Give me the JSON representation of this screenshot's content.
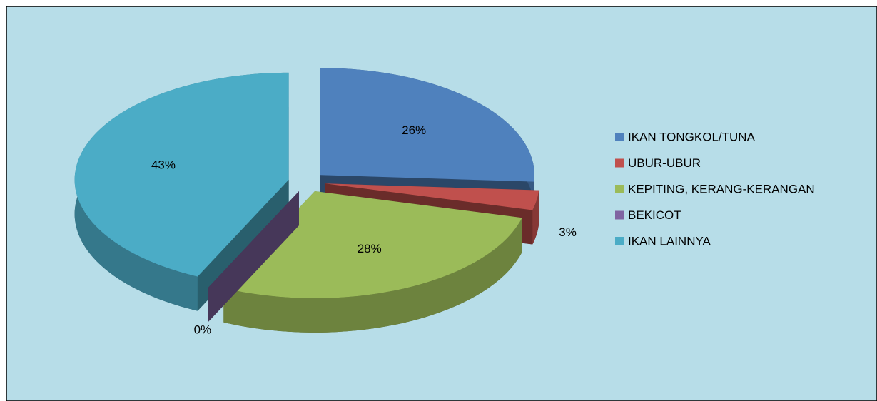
{
  "chart_data": {
    "type": "pie3d",
    "categories": [
      "IKAN TONGKOL/TUNA",
      "UBUR-UBUR",
      "KEPITING, KERANG-KERANGAN",
      "BEKICOT",
      "IKAN LAINNYA"
    ],
    "values": [
      26,
      3,
      28,
      0,
      43
    ],
    "value_labels": [
      "26%",
      "3%",
      "28%",
      "0%",
      "43%"
    ],
    "colors": [
      "#4f81bd",
      "#c0504d",
      "#9bbb59",
      "#8064a2",
      "#4bacc6"
    ],
    "legend": "right"
  }
}
